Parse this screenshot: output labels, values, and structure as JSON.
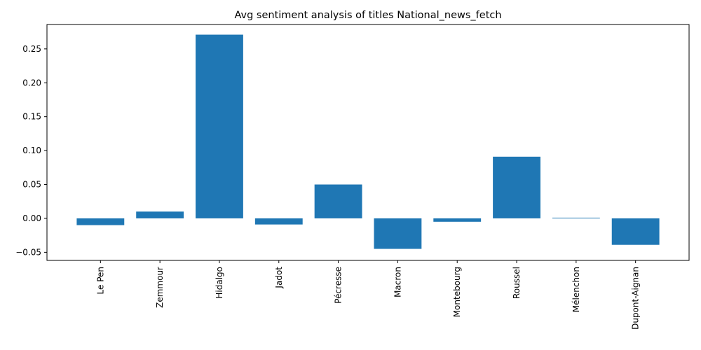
{
  "chart_data": {
    "type": "bar",
    "title": "Avg sentiment analysis of titles National_news_fetch",
    "xlabel": "",
    "ylabel": "",
    "categories": [
      "Le Pen",
      "Zemmour",
      "Hidalgo",
      "Jadot",
      "Pécresse",
      "Macron",
      "Montebourg",
      "Roussel",
      "Mélenchon",
      "Dupont-Aignan"
    ],
    "values": [
      -0.01,
      0.01,
      0.271,
      -0.009,
      0.05,
      -0.045,
      -0.005,
      0.091,
      0.001,
      -0.039
    ],
    "ylim": [
      -0.062,
      0.286
    ],
    "yticks": [
      -0.05,
      0.0,
      0.05,
      0.1,
      0.15,
      0.2,
      0.25
    ],
    "ytick_labels": [
      "−0.05",
      "0.00",
      "0.05",
      "0.10",
      "0.15",
      "0.20",
      "0.25"
    ],
    "grid": false,
    "bar_color": "#1f77b4"
  }
}
